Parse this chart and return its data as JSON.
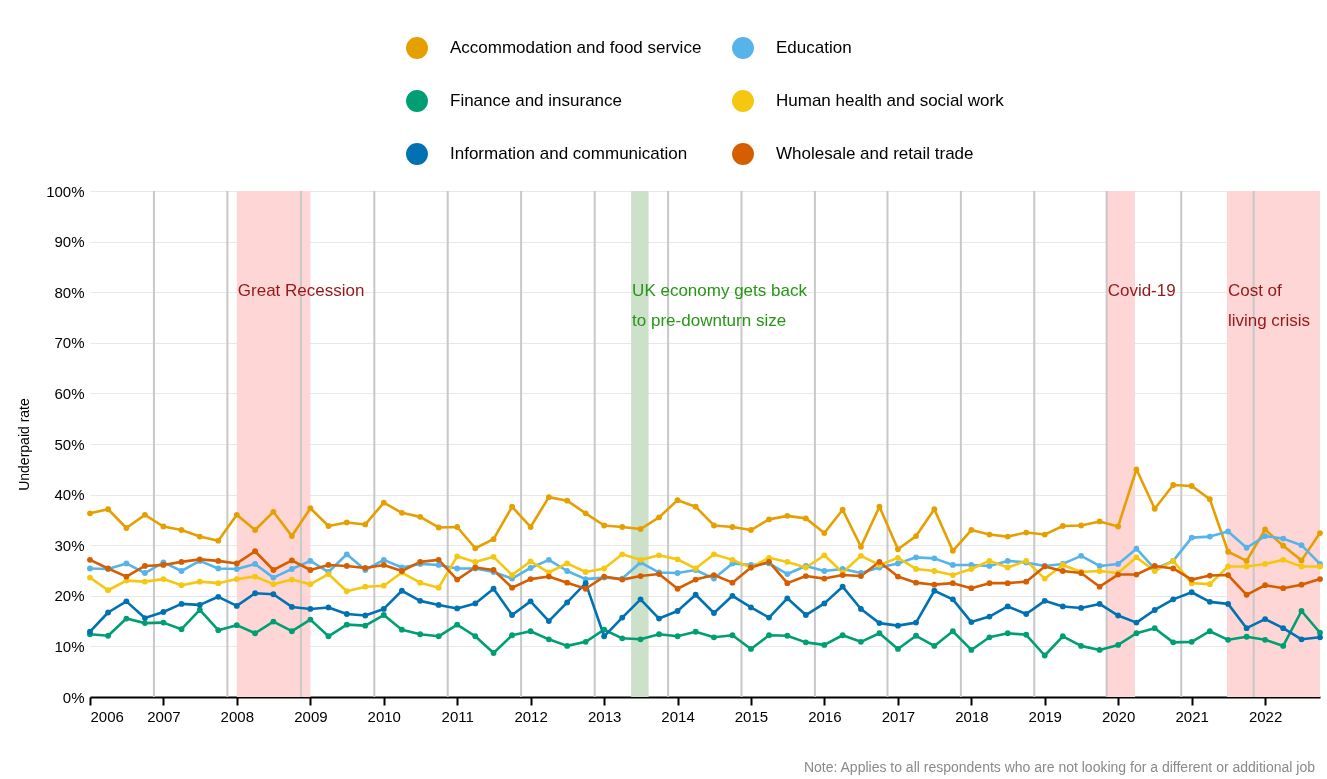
{
  "chart_data": {
    "type": "line",
    "ylabel": "Underpaid rate",
    "annotations": [
      "Note: Applies to all respondents who are not looking for a different or additional job"
    ],
    "x": [
      "2006-01",
      "2006-04",
      "2006-07",
      "2006-10",
      "2007-01",
      "2007-04",
      "2007-07",
      "2007-10",
      "2008-01",
      "2008-04",
      "2008-07",
      "2008-10",
      "2009-01",
      "2009-04",
      "2009-07",
      "2009-10",
      "2010-01",
      "2010-04",
      "2010-07",
      "2010-10",
      "2011-01",
      "2011-04",
      "2011-07",
      "2011-10",
      "2012-01",
      "2012-04",
      "2012-07",
      "2012-10",
      "2013-01",
      "2013-04",
      "2013-07",
      "2013-10",
      "2014-01",
      "2014-04",
      "2014-07",
      "2014-10",
      "2015-01",
      "2015-04",
      "2015-07",
      "2015-10",
      "2016-01",
      "2016-04",
      "2016-07",
      "2016-10",
      "2017-01",
      "2017-04",
      "2017-07",
      "2017-10",
      "2018-01",
      "2018-04",
      "2018-07",
      "2018-10",
      "2019-01",
      "2019-04",
      "2019-07",
      "2019-10",
      "2020-01",
      "2020-04",
      "2020-07",
      "2020-10",
      "2021-01",
      "2021-04",
      "2021-07",
      "2021-10",
      "2022-01",
      "2022-04",
      "2022-07",
      "2022-10"
    ],
    "series": [
      {
        "name": "Accommodation and food service",
        "color": "#e69f00",
        "values": [
          36.3,
          37.1,
          33.4,
          36.0,
          33.7,
          33.0,
          31.7,
          30.9,
          36.0,
          33.0,
          36.6,
          31.8,
          37.3,
          33.8,
          34.5,
          34.1,
          38.4,
          36.4,
          35.6,
          33.5,
          33.6,
          29.4,
          31.2,
          37.6,
          33.6,
          39.5,
          38.8,
          36.3,
          33.9,
          33.6,
          33.2,
          35.5,
          38.9,
          37.6,
          33.9,
          33.6,
          33.0,
          35.1,
          35.8,
          35.3,
          32.4,
          37.0,
          29.7,
          37.6,
          29.2,
          31.8,
          37.1,
          28.9,
          33.0,
          32.1,
          31.7,
          32.5,
          32.1,
          33.8,
          33.9,
          34.7,
          33.7,
          45.0,
          37.2,
          41.9,
          41.7,
          39.1,
          28.7,
          26.9,
          33.1,
          29.9,
          27.0,
          32.4
        ]
      },
      {
        "name": "Education",
        "color": "#56b4e9",
        "values": [
          25.4,
          25.3,
          26.4,
          24.5,
          26.6,
          24.9,
          26.9,
          25.4,
          25.3,
          26.3,
          23.6,
          25.3,
          26.9,
          24.7,
          28.2,
          25.1,
          27.1,
          25.6,
          26.3,
          26.1,
          25.4,
          25.4,
          24.7,
          23.4,
          25.5,
          27.1,
          24.9,
          23.3,
          23.6,
          23.4,
          26.6,
          24.6,
          24.5,
          25.1,
          23.4,
          26.4,
          26.1,
          26.4,
          24.3,
          25.9,
          24.9,
          25.3,
          24.5,
          25.6,
          26.4,
          27.6,
          27.4,
          26.1,
          26.1,
          25.9,
          26.9,
          26.6,
          25.9,
          26.3,
          27.9,
          25.9,
          26.3,
          29.3,
          25.3,
          26.9,
          31.5,
          31.7,
          32.7,
          29.5,
          31.8,
          31.3,
          30.0,
          26.3
        ]
      },
      {
        "name": "Finance and insurance",
        "color": "#009e73",
        "values": [
          12.4,
          12.1,
          15.5,
          14.6,
          14.7,
          13.4,
          17.2,
          13.2,
          14.2,
          12.6,
          14.9,
          13.0,
          15.3,
          12.0,
          14.3,
          14.1,
          16.2,
          13.3,
          12.4,
          12.0,
          14.3,
          12.0,
          8.7,
          12.2,
          13.0,
          11.4,
          10.1,
          10.9,
          13.3,
          11.6,
          11.4,
          12.4,
          12.0,
          12.9,
          11.8,
          12.2,
          9.5,
          12.2,
          12.1,
          10.8,
          10.3,
          12.2,
          10.9,
          12.6,
          9.5,
          12.1,
          10.1,
          13.0,
          9.3,
          11.8,
          12.6,
          12.3,
          8.2,
          12.0,
          10.1,
          9.3,
          10.3,
          12.6,
          13.6,
          10.8,
          10.9,
          13.0,
          11.3,
          11.9,
          11.3,
          10.1,
          17.0,
          12.7
        ]
      },
      {
        "name": "Human health and social work",
        "color": "#f5c710",
        "values": [
          23.6,
          21.1,
          23.0,
          22.8,
          23.3,
          22.1,
          22.8,
          22.5,
          23.3,
          23.8,
          22.3,
          23.2,
          22.3,
          24.3,
          20.9,
          21.8,
          22.0,
          24.6,
          22.6,
          21.6,
          27.8,
          26.7,
          27.7,
          24.1,
          26.8,
          24.6,
          26.4,
          24.7,
          25.4,
          28.2,
          27.1,
          28.0,
          27.2,
          25.4,
          28.2,
          27.1,
          25.6,
          27.5,
          26.7,
          25.6,
          28.0,
          24.6,
          27.9,
          26.1,
          27.5,
          25.3,
          24.9,
          24.1,
          25.3,
          26.9,
          25.6,
          26.9,
          23.4,
          26.1,
          24.7,
          24.9,
          24.5,
          27.6,
          24.9,
          26.9,
          22.5,
          22.3,
          25.8,
          25.8,
          26.3,
          27.1,
          25.8,
          25.8
        ]
      },
      {
        "name": "Information and communication",
        "color": "#0072b2",
        "values": [
          12.9,
          16.7,
          18.9,
          15.6,
          16.8,
          18.4,
          18.2,
          19.8,
          18.0,
          20.5,
          20.3,
          17.8,
          17.4,
          17.7,
          16.4,
          16.1,
          17.4,
          21.0,
          19.0,
          18.2,
          17.5,
          18.5,
          21.4,
          16.2,
          18.9,
          15.0,
          18.7,
          22.5,
          12.0,
          15.7,
          19.3,
          15.5,
          17.0,
          20.2,
          16.6,
          20.0,
          17.7,
          15.7,
          19.5,
          16.2,
          18.5,
          21.8,
          17.4,
          14.6,
          14.1,
          14.7,
          21.0,
          19.3,
          14.8,
          15.9,
          17.9,
          16.4,
          19.0,
          17.9,
          17.6,
          18.4,
          16.1,
          14.7,
          17.2,
          19.3,
          20.7,
          18.8,
          18.4,
          13.6,
          15.4,
          13.6,
          11.4,
          11.8
        ]
      },
      {
        "name": "Wholesale and retail trade",
        "color": "#d55e00",
        "values": [
          27.1,
          25.4,
          23.8,
          25.9,
          26.1,
          26.7,
          27.2,
          26.9,
          26.4,
          28.8,
          25.1,
          27.0,
          25.1,
          26.1,
          25.9,
          25.5,
          26.1,
          24.9,
          26.7,
          27.1,
          23.2,
          25.6,
          25.1,
          21.6,
          23.3,
          23.8,
          22.6,
          21.4,
          23.8,
          23.2,
          23.9,
          24.3,
          21.4,
          23.2,
          24.1,
          22.6,
          25.6,
          26.7,
          22.5,
          23.9,
          23.4,
          24.1,
          23.9,
          26.7,
          23.8,
          22.6,
          22.2,
          22.5,
          21.5,
          22.5,
          22.5,
          22.8,
          25.8,
          24.9,
          24.5,
          21.8,
          24.2,
          24.2,
          25.9,
          25.4,
          23.2,
          24.0,
          24.1,
          20.2,
          22.1,
          21.5,
          22.2,
          23.3
        ]
      }
    ],
    "xlim": [
      "2006-01",
      "2022-10"
    ],
    "xticks": [
      "2006",
      "2007",
      "2008",
      "2009",
      "2010",
      "2011",
      "2012",
      "2013",
      "2014",
      "2015",
      "2016",
      "2017",
      "2018",
      "2019",
      "2020",
      "2021",
      "2022"
    ],
    "ylim": [
      0,
      100
    ],
    "yticks": [
      {
        "value": 0,
        "label": "0%"
      },
      {
        "value": 10,
        "label": "10%"
      },
      {
        "value": 20,
        "label": "20%"
      },
      {
        "value": 30,
        "label": "30%"
      },
      {
        "value": 40,
        "label": "40%"
      },
      {
        "value": 50,
        "label": "50%"
      },
      {
        "value": 60,
        "label": "60%"
      },
      {
        "value": 70,
        "label": "70%"
      },
      {
        "value": 80,
        "label": "80%"
      },
      {
        "value": 90,
        "label": "90%"
      },
      {
        "value": 100,
        "label": "100%"
      }
    ],
    "grid": "y",
    "legend": "top",
    "marker": "circle",
    "line_style": "solid",
    "bands": [
      {
        "axis": "x",
        "from": "2008-01-01",
        "to": "2009-01-01",
        "label": "Great Recession",
        "color": "#ffd6d6"
      },
      {
        "axis": "x",
        "from": "2013-05-15",
        "to": "2013-08-10",
        "label": "UK economy gets back\nto pre-downturn size",
        "color": "#cde0ca"
      },
      {
        "axis": "x",
        "from": "2019-11-05",
        "to": "2020-03-25",
        "label": "Covid-19",
        "color": "#ffd6d6"
      },
      {
        "axis": "x",
        "from": "2021-06-25",
        "to": "2022-10-01",
        "label": "Cost of\nliving crisis",
        "color": "#ffd6d6"
      }
    ],
    "ref_lines": [
      {
        "axis": "x",
        "value": "2006-11-15",
        "color": "#c8c8c8"
      },
      {
        "axis": "x",
        "value": "2007-11-15",
        "color": "#c8c8c8"
      },
      {
        "axis": "x",
        "value": "2008-11-15",
        "color": "#c8c8c8"
      },
      {
        "axis": "x",
        "value": "2009-11-15",
        "color": "#c8c8c8"
      },
      {
        "axis": "x",
        "value": "2010-11-15",
        "color": "#c8c8c8"
      },
      {
        "axis": "x",
        "value": "2011-11-15",
        "color": "#c8c8c8"
      },
      {
        "axis": "x",
        "value": "2012-11-15",
        "color": "#c8c8c8"
      },
      {
        "axis": "x",
        "value": "2013-11-15",
        "color": "#c8c8c8"
      },
      {
        "axis": "x",
        "value": "2014-11-15",
        "color": "#c8c8c8"
      },
      {
        "axis": "x",
        "value": "2015-11-15",
        "color": "#c8c8c8"
      },
      {
        "axis": "x",
        "value": "2016-11-10",
        "color": "#c8c8c8"
      },
      {
        "axis": "x",
        "value": "2017-11-10",
        "color": "#c8c8c8"
      },
      {
        "axis": "x",
        "value": "2018-11-10",
        "color": "#c8c8c8"
      },
      {
        "axis": "x",
        "value": "2019-11-05",
        "color": "#c8c8c8"
      },
      {
        "axis": "x",
        "value": "2020-11-10",
        "color": "#c8c8c8"
      },
      {
        "axis": "x",
        "value": "2021-11-05",
        "color": "#c8c8c8"
      }
    ]
  }
}
